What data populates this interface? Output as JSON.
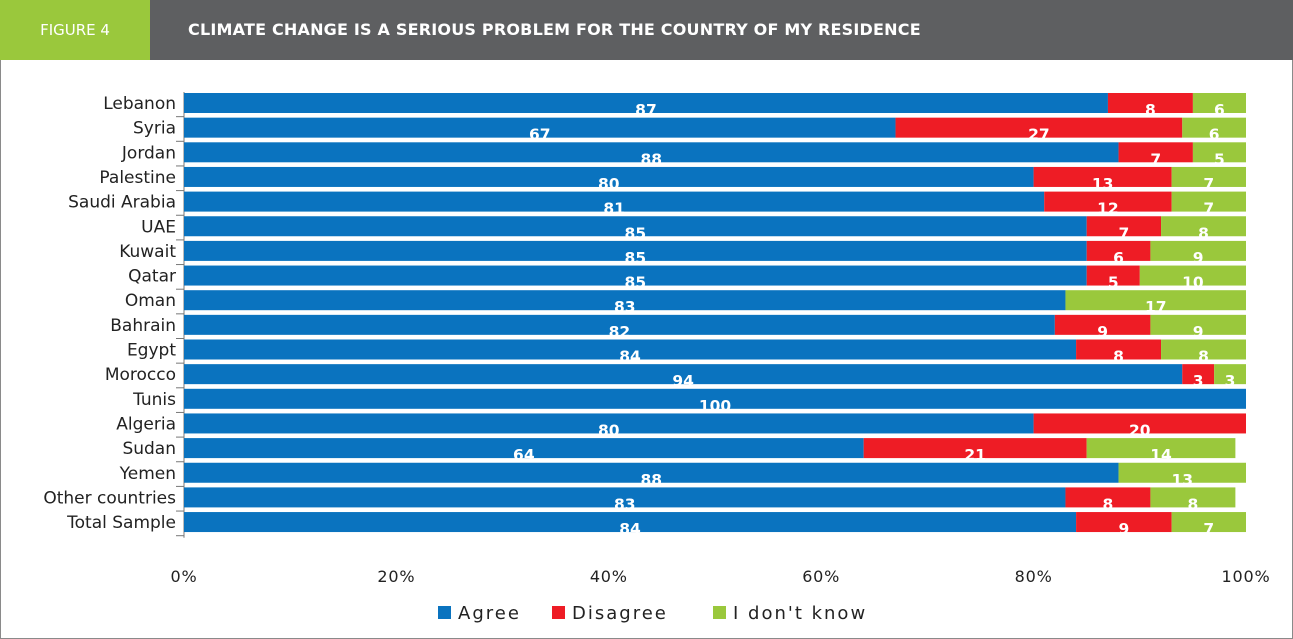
{
  "figure_label": "FIGURE 4",
  "title": "CLIMATE CHANGE IS A SERIOUS PROBLEM FOR THE COUNTRY OF MY RESIDENCE",
  "colors": {
    "header_bg": "#5e5f61",
    "tag_bg": "#9ac83c",
    "agree": "#0a73bf",
    "disagree": "#ee1c25",
    "dont_know": "#9ac83c"
  },
  "chart_data": {
    "type": "bar",
    "orientation": "horizontal",
    "stacked": "percent",
    "categories": [
      "Lebanon",
      "Syria",
      "Jordan",
      "Palestine",
      "Saudi Arabia",
      "UAE",
      "Kuwait",
      "Qatar",
      "Oman",
      "Bahrain",
      "Egypt",
      "Morocco",
      "Tunis",
      "Algeria",
      "Sudan",
      "Yemen",
      "Other countries",
      "Total Sample"
    ],
    "series": [
      {
        "name": "Agree",
        "color": "#0a73bf",
        "values": [
          87,
          67,
          88,
          80,
          81,
          85,
          85,
          85,
          83,
          82,
          84,
          94,
          100,
          80,
          64,
          88,
          83,
          84
        ]
      },
      {
        "name": "Disagree",
        "color": "#ee1c25",
        "values": [
          8,
          27,
          7,
          13,
          12,
          7,
          6,
          5,
          0,
          9,
          8,
          3,
          0,
          20,
          21,
          0,
          8,
          9
        ]
      },
      {
        "name": "I don't know",
        "color": "#9ac83c",
        "values": [
          6,
          6,
          5,
          7,
          7,
          8,
          9,
          10,
          17,
          9,
          8,
          3,
          0,
          0,
          14,
          13,
          8,
          7
        ]
      }
    ],
    "xlim": [
      0,
      100
    ],
    "xticks": [
      "0%",
      "20%",
      "40%",
      "60%",
      "80%",
      "100%"
    ],
    "legend_position": "bottom"
  }
}
